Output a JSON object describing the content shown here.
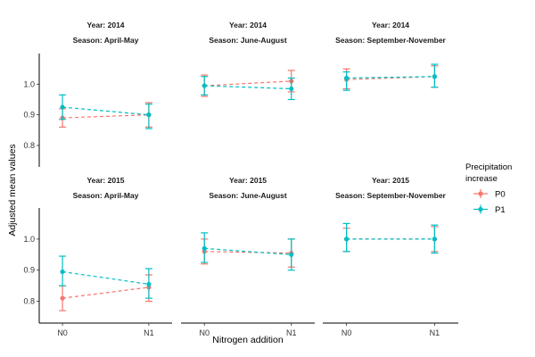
{
  "chart_data": {
    "type": "line",
    "xlabel": "Nitrogen addition",
    "ylabel": "Adjusted mean values",
    "categories": [
      "N0",
      "N1"
    ],
    "legend": {
      "title": [
        "Precipitation",
        "increase"
      ],
      "position": "right",
      "entries": [
        {
          "name": "P0",
          "color": "#F8766D"
        },
        {
          "name": "P1",
          "color": "#00BFC4"
        }
      ]
    },
    "rows": [
      {
        "ylim": [
          0.73,
          1.1
        ],
        "yticks": [
          0.8,
          0.9,
          1.0
        ],
        "ytick_labels": [
          "0.8",
          "0.9",
          "1.0"
        ],
        "panels": [
          {
            "strip": [
              "Year: 2014",
              "Season: April-May"
            ],
            "series": [
              {
                "name": "P0",
                "values": [
                  0.89,
                  0.9
                ],
                "lower": [
                  0.86,
                  0.86
                ],
                "upper": [
                  0.92,
                  0.94
                ]
              },
              {
                "name": "P1",
                "values": [
                  0.925,
                  0.9
                ],
                "lower": [
                  0.885,
                  0.855
                ],
                "upper": [
                  0.965,
                  0.935
                ]
              }
            ]
          },
          {
            "strip": [
              "Year: 2014",
              "Season: June-August"
            ],
            "series": [
              {
                "name": "P0",
                "values": [
                  0.995,
                  1.01
                ],
                "lower": [
                  0.96,
                  0.975
                ],
                "upper": [
                  1.03,
                  1.045
                ]
              },
              {
                "name": "P1",
                "values": [
                  0.995,
                  0.985
                ],
                "lower": [
                  0.965,
                  0.95
                ],
                "upper": [
                  1.025,
                  1.02
                ]
              }
            ]
          },
          {
            "strip": [
              "Year: 2014",
              "Season: September-November"
            ],
            "series": [
              {
                "name": "P0",
                "values": [
                  1.015,
                  1.025
                ],
                "lower": [
                  0.985,
                  0.99
                ],
                "upper": [
                  1.05,
                  1.06
                ]
              },
              {
                "name": "P1",
                "values": [
                  1.02,
                  1.025
                ],
                "lower": [
                  0.98,
                  0.99
                ],
                "upper": [
                  1.04,
                  1.065
                ]
              }
            ]
          }
        ]
      },
      {
        "ylim": [
          0.73,
          1.1
        ],
        "yticks": [
          0.8,
          0.9,
          1.0
        ],
        "ytick_labels": [
          "0.8",
          "0.9",
          "1.0"
        ],
        "panels": [
          {
            "strip": [
              "Year: 2015",
              "Season: April-May"
            ],
            "series": [
              {
                "name": "P0",
                "values": [
                  0.81,
                  0.845
                ],
                "lower": [
                  0.77,
                  0.8
                ],
                "upper": [
                  0.85,
                  0.885
                ]
              },
              {
                "name": "P1",
                "values": [
                  0.895,
                  0.855
                ],
                "lower": [
                  0.85,
                  0.81
                ],
                "upper": [
                  0.945,
                  0.905
                ]
              }
            ]
          },
          {
            "strip": [
              "Year: 2015",
              "Season: June-August"
            ],
            "series": [
              {
                "name": "P0",
                "values": [
                  0.96,
                  0.955
                ],
                "lower": [
                  0.92,
                  0.91
                ],
                "upper": [
                  1.0,
                  1.0
                ]
              },
              {
                "name": "P1",
                "values": [
                  0.97,
                  0.95
                ],
                "lower": [
                  0.925,
                  0.9
                ],
                "upper": [
                  1.02,
                  1.0
                ]
              }
            ]
          },
          {
            "strip": [
              "Year: 2015",
              "Season: September-November"
            ],
            "series": [
              {
                "name": "P0",
                "values": [
                  1.0,
                  1.0
                ],
                "lower": [
                  0.96,
                  0.96
                ],
                "upper": [
                  1.035,
                  1.04
                ]
              },
              {
                "name": "P1",
                "values": [
                  1.0,
                  1.0
                ],
                "lower": [
                  0.96,
                  0.955
                ],
                "upper": [
                  1.05,
                  1.045
                ]
              }
            ]
          }
        ]
      }
    ]
  }
}
